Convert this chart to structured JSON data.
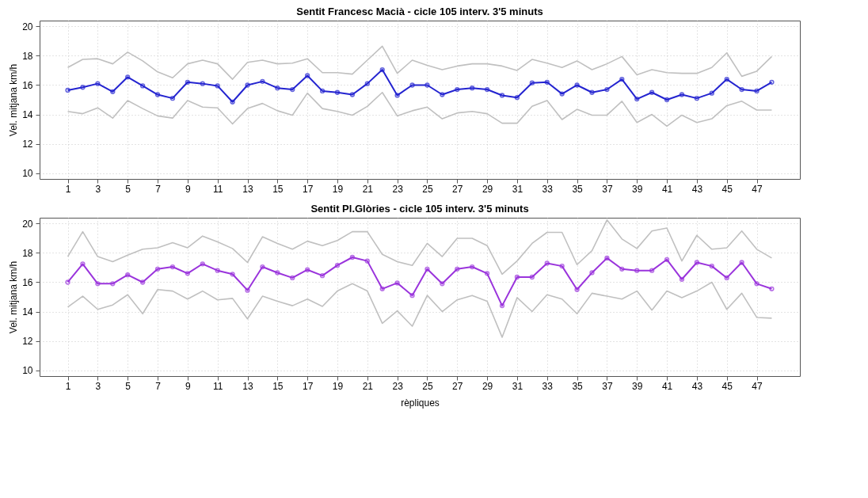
{
  "chart_data": [
    {
      "type": "line",
      "title": "Sentit Francesc Macià - cicle 105  interv. 3'5 minuts",
      "ylabel": "Vel. mitjana km/h",
      "x": [
        1,
        2,
        3,
        4,
        5,
        6,
        7,
        8,
        9,
        10,
        11,
        12,
        13,
        14,
        15,
        16,
        17,
        18,
        19,
        20,
        21,
        22,
        23,
        24,
        25,
        26,
        27,
        28,
        29,
        30,
        31,
        32,
        33,
        34,
        35,
        36,
        37,
        38,
        39,
        40,
        41,
        42,
        43,
        44,
        45,
        46,
        47,
        48
      ],
      "xlim": [
        -0.88,
        49.88
      ],
      "xticks": [
        1,
        3,
        5,
        7,
        9,
        11,
        13,
        15,
        17,
        19,
        21,
        23,
        25,
        27,
        29,
        31,
        33,
        35,
        37,
        39,
        41,
        43,
        45,
        47
      ],
      "ylim": [
        9.6,
        20.4
      ],
      "yticks": [
        10,
        12,
        14,
        16,
        18,
        20
      ],
      "grid": true,
      "marker": "circle",
      "line_style": "solid",
      "series": [
        {
          "color": "#c0c0c0",
          "marker": "none",
          "values": [
            17.2,
            17.75,
            17.8,
            17.45,
            18.25,
            17.65,
            16.9,
            16.5,
            17.45,
            17.7,
            17.45,
            16.4,
            17.55,
            17.7,
            17.45,
            17.5,
            17.8,
            16.85,
            16.85,
            16.75,
            17.7,
            18.65,
            16.8,
            17.7,
            17.35,
            17.05,
            17.3,
            17.45,
            17.45,
            17.3,
            17.0,
            17.75,
            17.5,
            17.2,
            17.65,
            17.05,
            17.45,
            17.95,
            16.7,
            17.05,
            16.85,
            16.8,
            16.8,
            17.2,
            18.2,
            16.6,
            16.95,
            17.95
          ]
        },
        {
          "color": "#c0c0c0",
          "marker": "none",
          "values": [
            14.2,
            14.05,
            14.45,
            13.75,
            14.95,
            14.4,
            13.9,
            13.75,
            14.95,
            14.5,
            14.45,
            13.35,
            14.4,
            14.75,
            14.25,
            13.95,
            15.45,
            14.4,
            14.2,
            13.95,
            14.55,
            15.5,
            13.9,
            14.25,
            14.5,
            13.7,
            14.1,
            14.2,
            14.05,
            13.4,
            13.4,
            14.55,
            14.95,
            13.65,
            14.35,
            13.95,
            13.95,
            14.9,
            13.45,
            14.0,
            13.2,
            13.95,
            13.45,
            13.7,
            14.6,
            14.9,
            14.3,
            14.3
          ]
        },
        {
          "color": "#2424d0",
          "values": [
            15.65,
            15.85,
            16.1,
            15.55,
            16.55,
            15.95,
            15.35,
            15.1,
            16.2,
            16.1,
            15.95,
            14.85,
            16.0,
            16.25,
            15.8,
            15.7,
            16.65,
            15.6,
            15.5,
            15.35,
            16.1,
            17.05,
            15.3,
            16.0,
            16.0,
            15.35,
            15.7,
            15.8,
            15.7,
            15.3,
            15.15,
            16.15,
            16.2,
            15.4,
            16.0,
            15.5,
            15.7,
            16.4,
            15.05,
            15.5,
            15.0,
            15.35,
            15.1,
            15.45,
            16.4,
            15.7,
            15.6,
            16.2
          ]
        }
      ]
    },
    {
      "type": "line",
      "title": "Sentit Pl.Glòries - cicle 105  interv. 3'5 minuts",
      "ylabel": "Vel. mitjana km/h",
      "xlabel": "rèpliques",
      "x": [
        1,
        2,
        3,
        4,
        5,
        6,
        7,
        8,
        9,
        10,
        11,
        12,
        13,
        14,
        15,
        16,
        17,
        18,
        19,
        20,
        21,
        22,
        23,
        24,
        25,
        26,
        27,
        28,
        29,
        30,
        31,
        32,
        33,
        34,
        35,
        36,
        37,
        38,
        39,
        40,
        41,
        42,
        43,
        44,
        45,
        46,
        47,
        48
      ],
      "xlim": [
        -0.88,
        49.88
      ],
      "xticks": [
        1,
        3,
        5,
        7,
        9,
        11,
        13,
        15,
        17,
        19,
        21,
        23,
        25,
        27,
        29,
        31,
        33,
        35,
        37,
        39,
        41,
        43,
        45,
        47
      ],
      "ylim": [
        9.6,
        20.4
      ],
      "yticks": [
        10,
        12,
        14,
        16,
        18,
        20
      ],
      "grid": true,
      "marker": "circle",
      "line_style": "solid",
      "series": [
        {
          "color": "#c0c0c0",
          "marker": "none",
          "values": [
            17.75,
            19.45,
            17.75,
            17.4,
            17.85,
            18.25,
            18.35,
            18.7,
            18.35,
            19.15,
            18.75,
            18.3,
            17.35,
            19.1,
            18.65,
            18.25,
            18.8,
            18.5,
            18.85,
            19.45,
            19.45,
            17.9,
            17.4,
            17.15,
            18.65,
            17.75,
            19.0,
            19.0,
            18.5,
            16.55,
            17.45,
            18.65,
            19.4,
            19.4,
            17.2,
            18.15,
            20.25,
            18.95,
            18.3,
            19.5,
            19.7,
            17.45,
            19.2,
            18.25,
            18.35,
            19.5,
            18.25,
            17.65
          ]
        },
        {
          "color": "#c0c0c0",
          "marker": "none",
          "values": [
            14.3,
            15.05,
            14.15,
            14.45,
            15.15,
            13.85,
            15.5,
            15.4,
            14.85,
            15.4,
            14.8,
            14.9,
            13.5,
            15.05,
            14.7,
            14.4,
            14.85,
            14.35,
            15.4,
            15.9,
            15.4,
            13.2,
            14.05,
            13.0,
            15.1,
            14.0,
            14.8,
            15.1,
            14.7,
            12.25,
            14.95,
            14.0,
            15.15,
            14.85,
            13.85,
            15.25,
            15.05,
            14.85,
            15.4,
            14.1,
            15.4,
            14.95,
            15.4,
            16.0,
            14.15,
            15.25,
            13.6,
            13.55
          ]
        },
        {
          "color": "#9a34dc",
          "values": [
            16.0,
            17.25,
            15.9,
            15.9,
            16.5,
            16.0,
            16.9,
            17.05,
            16.6,
            17.25,
            16.8,
            16.55,
            15.45,
            17.05,
            16.65,
            16.3,
            16.85,
            16.45,
            17.15,
            17.7,
            17.45,
            15.55,
            15.95,
            15.1,
            16.9,
            15.9,
            16.9,
            17.05,
            16.6,
            14.4,
            16.35,
            16.35,
            17.3,
            17.1,
            15.5,
            16.65,
            17.65,
            16.9,
            16.8,
            16.8,
            17.55,
            16.2,
            17.35,
            17.1,
            16.3,
            17.35,
            15.9,
            15.55
          ]
        }
      ]
    }
  ]
}
